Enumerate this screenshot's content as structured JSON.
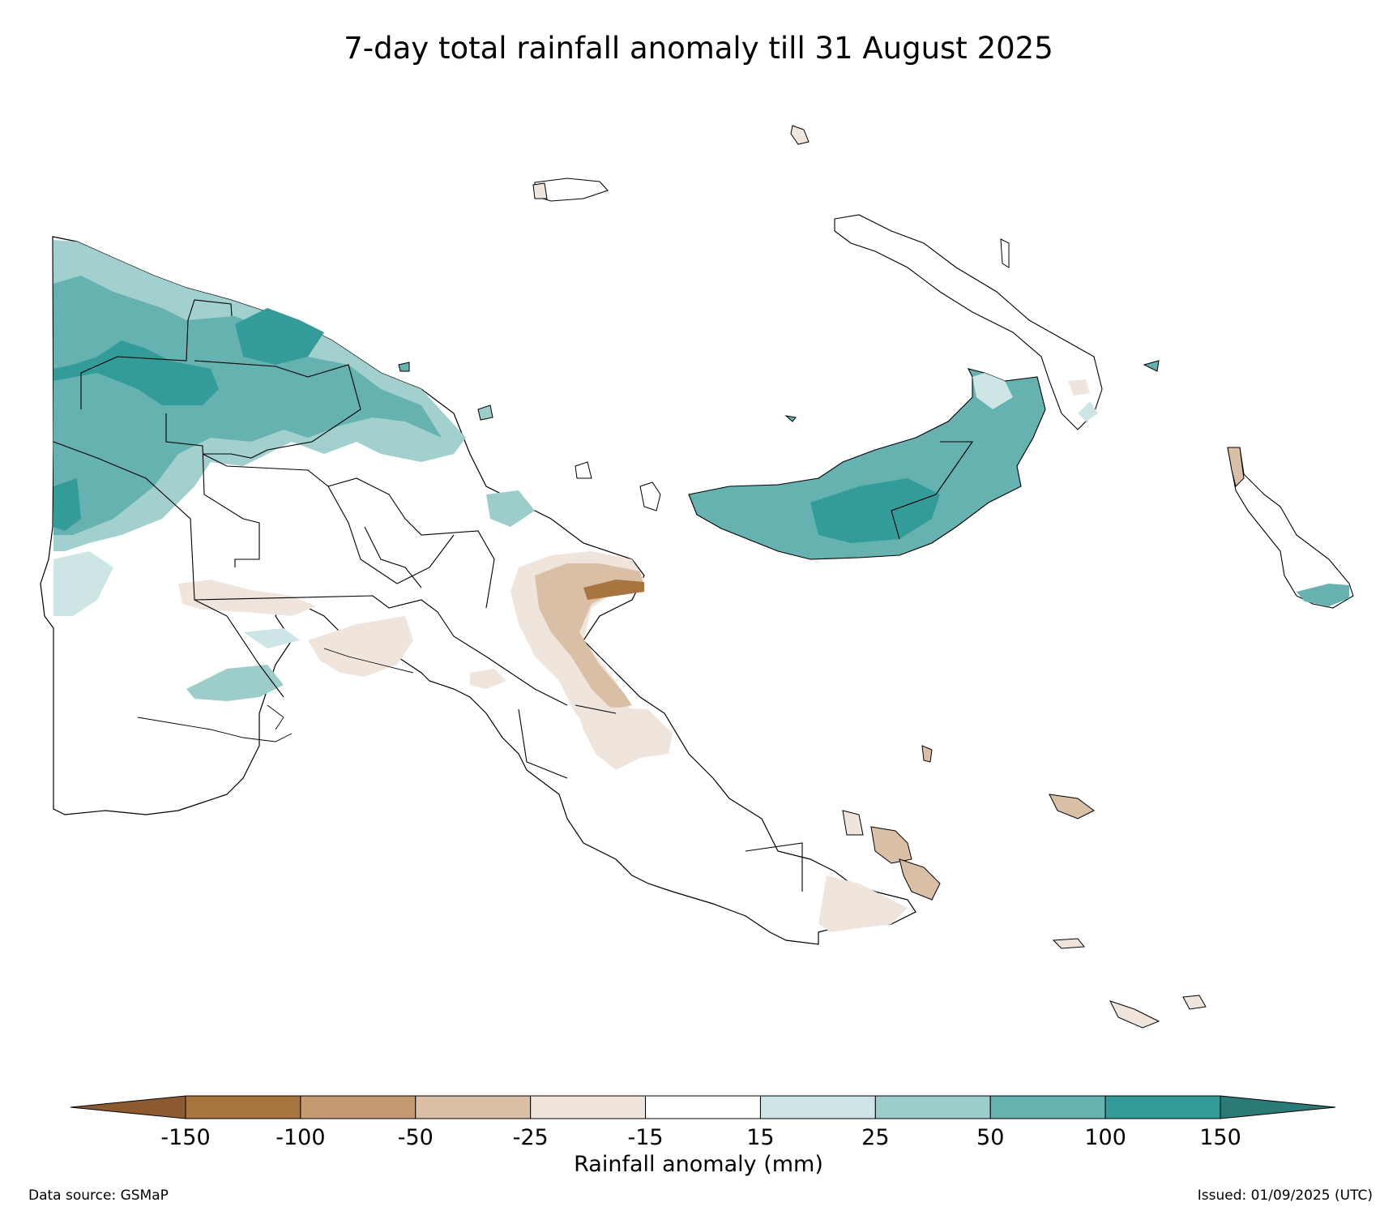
{
  "title": "7-day total rainfall anomaly till 31 August 2025",
  "colorbar": {
    "label": "Rainfall anomaly (mm)",
    "ticks": [
      "-150",
      "-100",
      "-50",
      "-25",
      "-15",
      "15",
      "25",
      "50",
      "100",
      "150"
    ],
    "colors": {
      "lt_-150": "#8c5a2e",
      "-150_-100": "#a8743f",
      "-100_-50": "#c49a70",
      "-50_-25": "#d9bfa5",
      "-25_-15": "#efe5dc",
      "-15_15": "#ffffff",
      "15_25": "#cde5e4",
      "25_50": "#9ccdcb",
      "50_100": "#66b2b0",
      "100_150": "#339c99",
      "gt_150": "#2a7b78"
    }
  },
  "footer": {
    "source": "Data source: GSMaP",
    "issued": "Issued: 01/09/2025 (UTC)"
  }
}
